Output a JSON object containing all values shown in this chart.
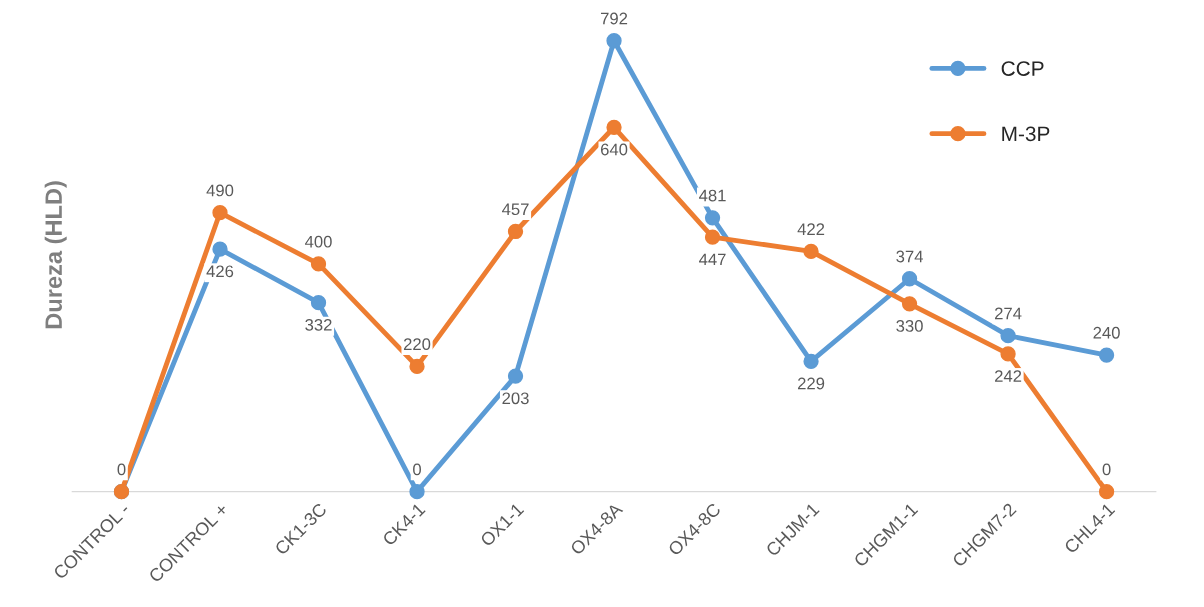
{
  "chart_data": {
    "type": "line",
    "ylabel": "Dureza (HLD)",
    "categories": [
      "CONTROL -",
      "CONTROL +",
      "CK1-3C",
      "CK4-1",
      "OX1-1",
      "OX4-8A",
      "OX4-8C",
      "CHJM-1",
      "CHGM1-1",
      "CHGM7-2",
      "CHL4-1"
    ],
    "series": [
      {
        "name": "CCP",
        "color": "#5b9bd5",
        "values": [
          0,
          426,
          332,
          0,
          203,
          792,
          481,
          229,
          374,
          274,
          240
        ]
      },
      {
        "name": "M-3P",
        "color": "#ed7d31",
        "values": [
          0,
          490,
          400,
          220,
          457,
          640,
          447,
          422,
          330,
          242,
          0
        ],
        "value_labels": [
          null,
          "490",
          "400",
          "220",
          "457",
          "640",
          "447",
          "422",
          "330",
          "242",
          "0"
        ]
      }
    ],
    "data_labels": true,
    "marker": "circle",
    "line_style": "solid",
    "grid": false,
    "legend": "top right",
    "tick_labels": "x"
  }
}
